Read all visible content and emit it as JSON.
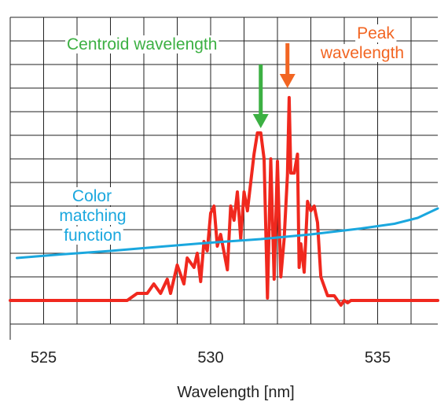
{
  "chart_data": {
    "type": "line",
    "title": "",
    "xlabel": "Wavelength [nm]",
    "ylabel": "",
    "xlim": [
      524,
      536.8
    ],
    "ylim": [
      0,
      13
    ],
    "x_ticks": [
      525,
      530,
      535
    ],
    "grid": true,
    "colors": {
      "spectrum": "#f0281e",
      "cmf": "#1aa7de",
      "centroid": "#3cb043",
      "peak": "#f26522",
      "grid": "#222222"
    },
    "series": [
      {
        "name": "",
        "color": "#f0281e",
        "x": [
          524.0,
          527.5,
          527.8,
          528.1,
          528.3,
          528.5,
          528.7,
          528.8,
          529.0,
          529.2,
          529.3,
          529.5,
          529.6,
          529.7,
          529.8,
          529.9,
          530.0,
          530.1,
          530.2,
          530.3,
          530.5,
          530.6,
          530.7,
          530.8,
          530.9,
          531.0,
          531.1,
          531.2,
          531.3,
          531.4,
          531.5,
          531.6,
          531.7,
          531.8,
          531.9,
          532.0,
          532.1,
          532.2,
          532.3,
          532.35,
          532.4,
          532.5,
          532.6,
          532.65,
          532.7,
          532.8,
          532.9,
          533.0,
          533.1,
          533.2,
          533.3,
          533.5,
          533.7,
          533.9,
          534.0,
          534.1,
          534.2,
          534.3,
          534.5,
          536.8
        ],
        "values": [
          1.0,
          1.0,
          1.3,
          1.3,
          1.7,
          1.3,
          1.9,
          1.3,
          2.5,
          1.7,
          2.8,
          2.4,
          3.0,
          1.8,
          3.5,
          3.1,
          4.7,
          5.0,
          3.3,
          3.8,
          2.3,
          5.0,
          4.4,
          5.6,
          3.6,
          5.6,
          4.8,
          6.0,
          7.2,
          8.1,
          8.1,
          7.0,
          1.1,
          7.0,
          1.9,
          6.9,
          2.0,
          3.6,
          6.3,
          9.6,
          6.4,
          6.4,
          7.2,
          2.4,
          3.4,
          2.2,
          5.2,
          4.8,
          5.0,
          4.3,
          2.0,
          1.2,
          1.2,
          0.8,
          1.0,
          0.9,
          1.0,
          1.0,
          1.0,
          1.0
        ]
      },
      {
        "name": "",
        "color": "#1aa7de",
        "x": [
          524.2,
          525.5,
          527.0,
          528.5,
          530.0,
          531.5,
          533.0,
          534.5,
          535.5,
          536.2,
          536.8
        ],
        "values": [
          2.8,
          2.95,
          3.1,
          3.28,
          3.45,
          3.6,
          3.8,
          4.05,
          4.25,
          4.5,
          4.9
        ]
      }
    ],
    "annotations": {
      "centroid": {
        "text": "Centroid wavelength",
        "x": 531.5,
        "arrow_tip": 8.3,
        "arrow_tail": 11.0
      },
      "peak": {
        "line1": "Peak",
        "line2": "wavelength",
        "x": 532.3,
        "arrow_tip": 10.0,
        "arrow_tail": 11.9
      },
      "cmf": {
        "line1": "Color",
        "line2": "matching",
        "line3": "function"
      }
    }
  }
}
